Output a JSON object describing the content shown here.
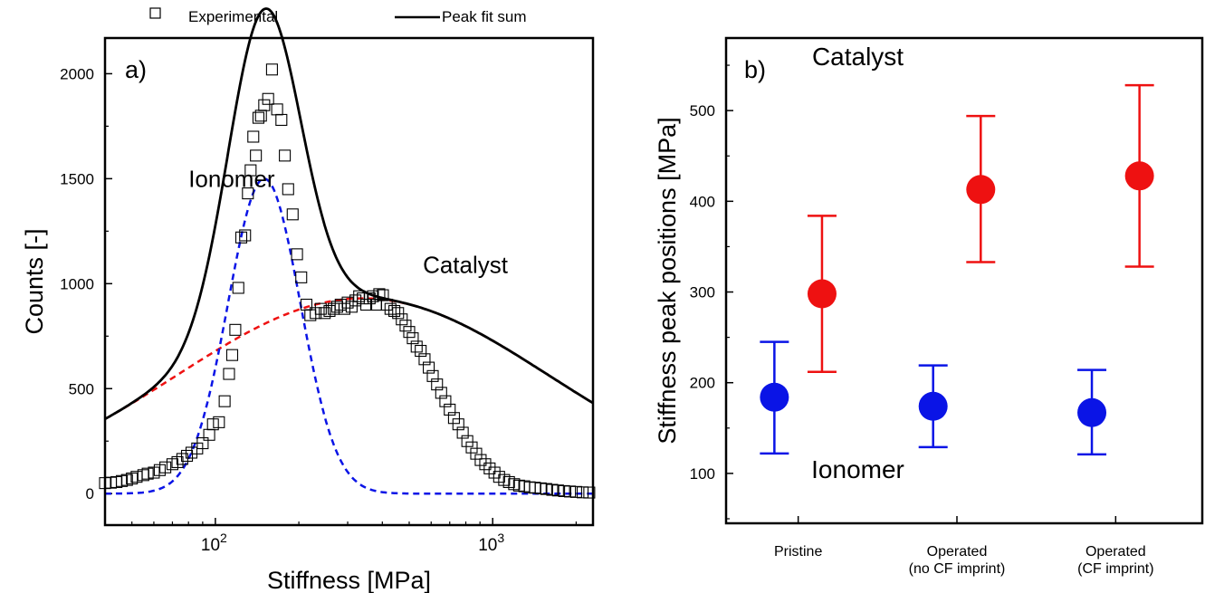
{
  "legend": {
    "items": [
      {
        "label": "Experimental",
        "marker": "open-square"
      },
      {
        "label": "Peak fit sum",
        "marker": "solid-line"
      }
    ]
  },
  "colors": {
    "ionomer": "#0a14e6",
    "catalyst": "#ee1111",
    "fit": "#000000"
  },
  "chart_data": [
    {
      "panel_label": "a)",
      "type": "scatter",
      "xlabel": "Stiffness [MPa]",
      "ylabel": "Counts [-]",
      "xscale": "log",
      "xlim": [
        40,
        2300
      ],
      "ylim": [
        -150,
        2170
      ],
      "yticks": [
        0,
        500,
        1000,
        1500,
        2000
      ],
      "xticks": [
        {
          "value": 100,
          "base": "10",
          "exp": "2"
        },
        {
          "value": 1000,
          "base": "10",
          "exp": "3"
        }
      ],
      "annotations": [
        {
          "text": "Ionomer",
          "color": "#0a14e6",
          "x": 80,
          "y": 1460
        },
        {
          "text": "Catalyst",
          "color": "#ee1111",
          "x": 560,
          "y": 1050
        }
      ],
      "series": [
        {
          "name": "Experimental",
          "style": "open-square",
          "points": [
            [
              40,
              50
            ],
            [
              42,
              52
            ],
            [
              44,
              55
            ],
            [
              46,
              60
            ],
            [
              48,
              65
            ],
            [
              50,
              72
            ],
            [
              52,
              80
            ],
            [
              55,
              88
            ],
            [
              57,
              95
            ],
            [
              60,
              100
            ],
            [
              63,
              112
            ],
            [
              66,
              125
            ],
            [
              70,
              140
            ],
            [
              73,
              150
            ],
            [
              76,
              165
            ],
            [
              79,
              180
            ],
            [
              82,
              195
            ],
            [
              86,
              215
            ],
            [
              90,
              240
            ],
            [
              95,
              280
            ],
            [
              98,
              330
            ],
            [
              103,
              340
            ],
            [
              108,
              440
            ],
            [
              112,
              570
            ],
            [
              115,
              660
            ],
            [
              118,
              780
            ],
            [
              121,
              980
            ],
            [
              124,
              1220
            ],
            [
              128,
              1230
            ],
            [
              131,
              1430
            ],
            [
              134,
              1540
            ],
            [
              137,
              1700
            ],
            [
              140,
              1610
            ],
            [
              143,
              1790
            ],
            [
              146,
              1800
            ],
            [
              150,
              1850
            ],
            [
              155,
              1880
            ],
            [
              160,
              2020
            ],
            [
              167,
              1830
            ],
            [
              173,
              1780
            ],
            [
              178,
              1610
            ],
            [
              183,
              1450
            ],
            [
              190,
              1330
            ],
            [
              197,
              1140
            ],
            [
              204,
              1030
            ],
            [
              213,
              900
            ],
            [
              220,
              850
            ],
            [
              230,
              860
            ],
            [
              240,
              880
            ],
            [
              248,
              860
            ],
            [
              258,
              870
            ],
            [
              267,
              880
            ],
            [
              275,
              890
            ],
            [
              283,
              900
            ],
            [
              292,
              880
            ],
            [
              300,
              910
            ],
            [
              310,
              890
            ],
            [
              320,
              920
            ],
            [
              330,
              940
            ],
            [
              340,
              930
            ],
            [
              350,
              900
            ],
            [
              360,
              930
            ],
            [
              370,
              940
            ],
            [
              380,
              900
            ],
            [
              390,
              950
            ],
            [
              402,
              945
            ],
            [
              415,
              900
            ],
            [
              428,
              880
            ],
            [
              442,
              870
            ],
            [
              456,
              860
            ],
            [
              470,
              830
            ],
            [
              485,
              800
            ],
            [
              500,
              770
            ],
            [
              515,
              740
            ],
            [
              532,
              700
            ],
            [
              550,
              680
            ],
            [
              568,
              640
            ],
            [
              588,
              600
            ],
            [
              608,
              560
            ],
            [
              630,
              520
            ],
            [
              652,
              480
            ],
            [
              675,
              440
            ],
            [
              700,
              400
            ],
            [
              725,
              360
            ],
            [
              752,
              330
            ],
            [
              780,
              290
            ],
            [
              810,
              250
            ],
            [
              840,
              220
            ],
            [
              872,
              190
            ],
            [
              905,
              160
            ],
            [
              940,
              140
            ],
            [
              975,
              120
            ],
            [
              1015,
              100
            ],
            [
              1055,
              80
            ],
            [
              1100,
              65
            ],
            [
              1145,
              55
            ],
            [
              1195,
              45
            ],
            [
              1245,
              38
            ],
            [
              1300,
              35
            ],
            [
              1360,
              30
            ],
            [
              1420,
              28
            ],
            [
              1490,
              25
            ],
            [
              1560,
              22
            ],
            [
              1640,
              18
            ],
            [
              1720,
              15
            ],
            [
              1810,
              12
            ],
            [
              1900,
              10
            ],
            [
              2000,
              8
            ],
            [
              2110,
              6
            ],
            [
              2230,
              5
            ]
          ]
        },
        {
          "name": "Peak fit sum",
          "style": "solid",
          "color": "#000000",
          "model": {
            "type": "sum",
            "components": [
              0,
              1
            ]
          }
        },
        {
          "name": "Ionomer",
          "style": "dashed",
          "color": "#0a14e6",
          "model": {
            "type": "lognormal",
            "amplitude": 1500,
            "center": 150,
            "width": 0.13
          }
        },
        {
          "name": "Catalyst",
          "style": "dashed",
          "color": "#ee1111",
          "model": {
            "type": "lognormal",
            "amplitude": 930,
            "center": 340,
            "width": 0.67
          }
        }
      ]
    },
    {
      "panel_label": "b)",
      "type": "scatter",
      "ylabel": "Stiffness peak positions [MPa]",
      "ylim": [
        45,
        580
      ],
      "yticks": [
        100,
        200,
        300,
        400,
        500
      ],
      "categories": [
        [
          "Pristine"
        ],
        [
          "Operated",
          "(no CF imprint)"
        ],
        [
          "Operated",
          "(CF imprint)"
        ]
      ],
      "annotations": [
        {
          "text": "Catalyst",
          "color": "#ee1111",
          "category": 0.83,
          "y": 550
        },
        {
          "text": "Ionomer",
          "color": "#0a14e6",
          "category": 0.83,
          "y": 95
        }
      ],
      "series": [
        {
          "name": "Ionomer",
          "color": "#0a14e6",
          "offset": -0.15,
          "values": [
            184,
            174,
            167
          ],
          "err_low": [
            122,
            129,
            121
          ],
          "err_high": [
            245,
            219,
            214
          ]
        },
        {
          "name": "Catalyst",
          "color": "#ee1111",
          "offset": 0.15,
          "values": [
            298,
            413,
            428
          ],
          "err_low": [
            212,
            333,
            328
          ],
          "err_high": [
            384,
            494,
            528
          ]
        }
      ]
    }
  ]
}
